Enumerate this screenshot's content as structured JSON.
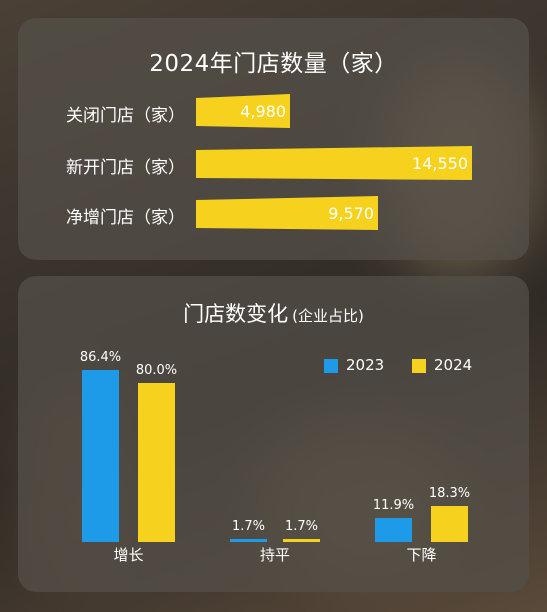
{
  "chart_data": [
    {
      "type": "bar",
      "orientation": "horizontal",
      "title": "2024年门店数量（家）",
      "categories": [
        "关闭门店（家）",
        "新开门店（家）",
        "净增门店（家）"
      ],
      "values": [
        4980,
        14550,
        9570
      ],
      "value_labels": [
        "4,980",
        "14,550",
        "9,570"
      ],
      "color": "#f6d21e",
      "xlim": [
        0,
        14550
      ]
    },
    {
      "type": "bar",
      "title": "门店数变化",
      "subtitle": "(企业占比)",
      "categories": [
        "增长",
        "持平",
        "下降"
      ],
      "series": [
        {
          "name": "2023",
          "color": "#1e9be8",
          "values": [
            86.4,
            1.7,
            11.9
          ],
          "labels": [
            "86.4%",
            "1.7%",
            "11.9%"
          ]
        },
        {
          "name": "2024",
          "color": "#f6d21e",
          "values": [
            80.0,
            1.7,
            18.3
          ],
          "labels": [
            "80.0%",
            "1.7%",
            "18.3%"
          ]
        }
      ],
      "ylim": [
        0,
        86.4
      ],
      "legend": "top-right"
    }
  ]
}
